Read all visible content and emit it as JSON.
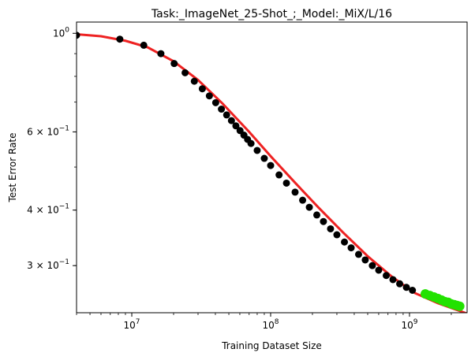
{
  "chart_data": {
    "type": "scatter",
    "title": "Task:_ImageNet_25-Shot_;_Model:_MiX/L/16",
    "xlabel": "Training Dataset Size",
    "ylabel": "Test Error Rate",
    "xscale": "log",
    "yscale": "log",
    "xlim": [
      4000000,
      2600000000
    ],
    "ylim": [
      0.235,
      1.06
    ],
    "grid": false,
    "x_ticks": [
      {
        "value": 10000000,
        "base": "10",
        "exp": "7"
      },
      {
        "value": 100000000,
        "base": "10",
        "exp": "8"
      },
      {
        "value": 1000000000,
        "base": "10",
        "exp": "9"
      }
    ],
    "y_ticks": [
      {
        "value": 1.0,
        "base": "10",
        "exp": "0",
        "mult": ""
      },
      {
        "value": 0.6,
        "base": "10",
        "exp": "−1",
        "mult": "6 × "
      },
      {
        "value": 0.4,
        "base": "10",
        "exp": "−1",
        "mult": "4 × "
      },
      {
        "value": 0.3,
        "base": "10",
        "exp": "−1",
        "mult": "3 × "
      }
    ],
    "series": [
      {
        "role": "train",
        "color": "#000000",
        "x": [
          4000000,
          8200000,
          12200000,
          16200000,
          20200000,
          24200000,
          28200000,
          32200000,
          36200000,
          40200000,
          44200000,
          48200000,
          52200000,
          56200000,
          60200000,
          64200000,
          68200000,
          72200000,
          80000000,
          90000000,
          100000000,
          115000000,
          130000000,
          150000000,
          170000000,
          190000000,
          215000000,
          240000000,
          270000000,
          300000000,
          340000000,
          380000000,
          430000000,
          480000000,
          540000000,
          600000000,
          680000000,
          760000000,
          850000000,
          950000000,
          1050000000
        ],
        "y": [
          0.99,
          0.97,
          0.94,
          0.9,
          0.855,
          0.815,
          0.78,
          0.75,
          0.723,
          0.698,
          0.675,
          0.655,
          0.636,
          0.619,
          0.604,
          0.59,
          0.577,
          0.565,
          0.545,
          0.523,
          0.504,
          0.48,
          0.46,
          0.439,
          0.421,
          0.406,
          0.39,
          0.377,
          0.363,
          0.352,
          0.339,
          0.329,
          0.318,
          0.309,
          0.3,
          0.293,
          0.285,
          0.279,
          0.273,
          0.268,
          0.264
        ]
      },
      {
        "role": "test",
        "color": "#22e200",
        "x": [
          1300000000,
          1400000000,
          1500000000,
          1600000000,
          1700000000,
          1800000000,
          1900000000,
          2000000000,
          2100000000,
          2200000000,
          2300000000
        ],
        "y": [
          0.259,
          0.257,
          0.255,
          0.253,
          0.251,
          0.249,
          0.248,
          0.246,
          0.245,
          0.244,
          0.243
        ]
      }
    ],
    "fit_curve": {
      "color": "#ee2222",
      "x": [
        4000000,
        6000000,
        9000000,
        13000000,
        20000000,
        30000000,
        45000000,
        70000000,
        100000000,
        150000000,
        220000000,
        330000000,
        500000000,
        750000000,
        1100000000,
        1600000000,
        2600000000
      ],
      "y": [
        0.995,
        0.985,
        0.962,
        0.93,
        0.865,
        0.785,
        0.695,
        0.6,
        0.529,
        0.461,
        0.406,
        0.357,
        0.315,
        0.283,
        0.26,
        0.247,
        0.234
      ]
    }
  }
}
